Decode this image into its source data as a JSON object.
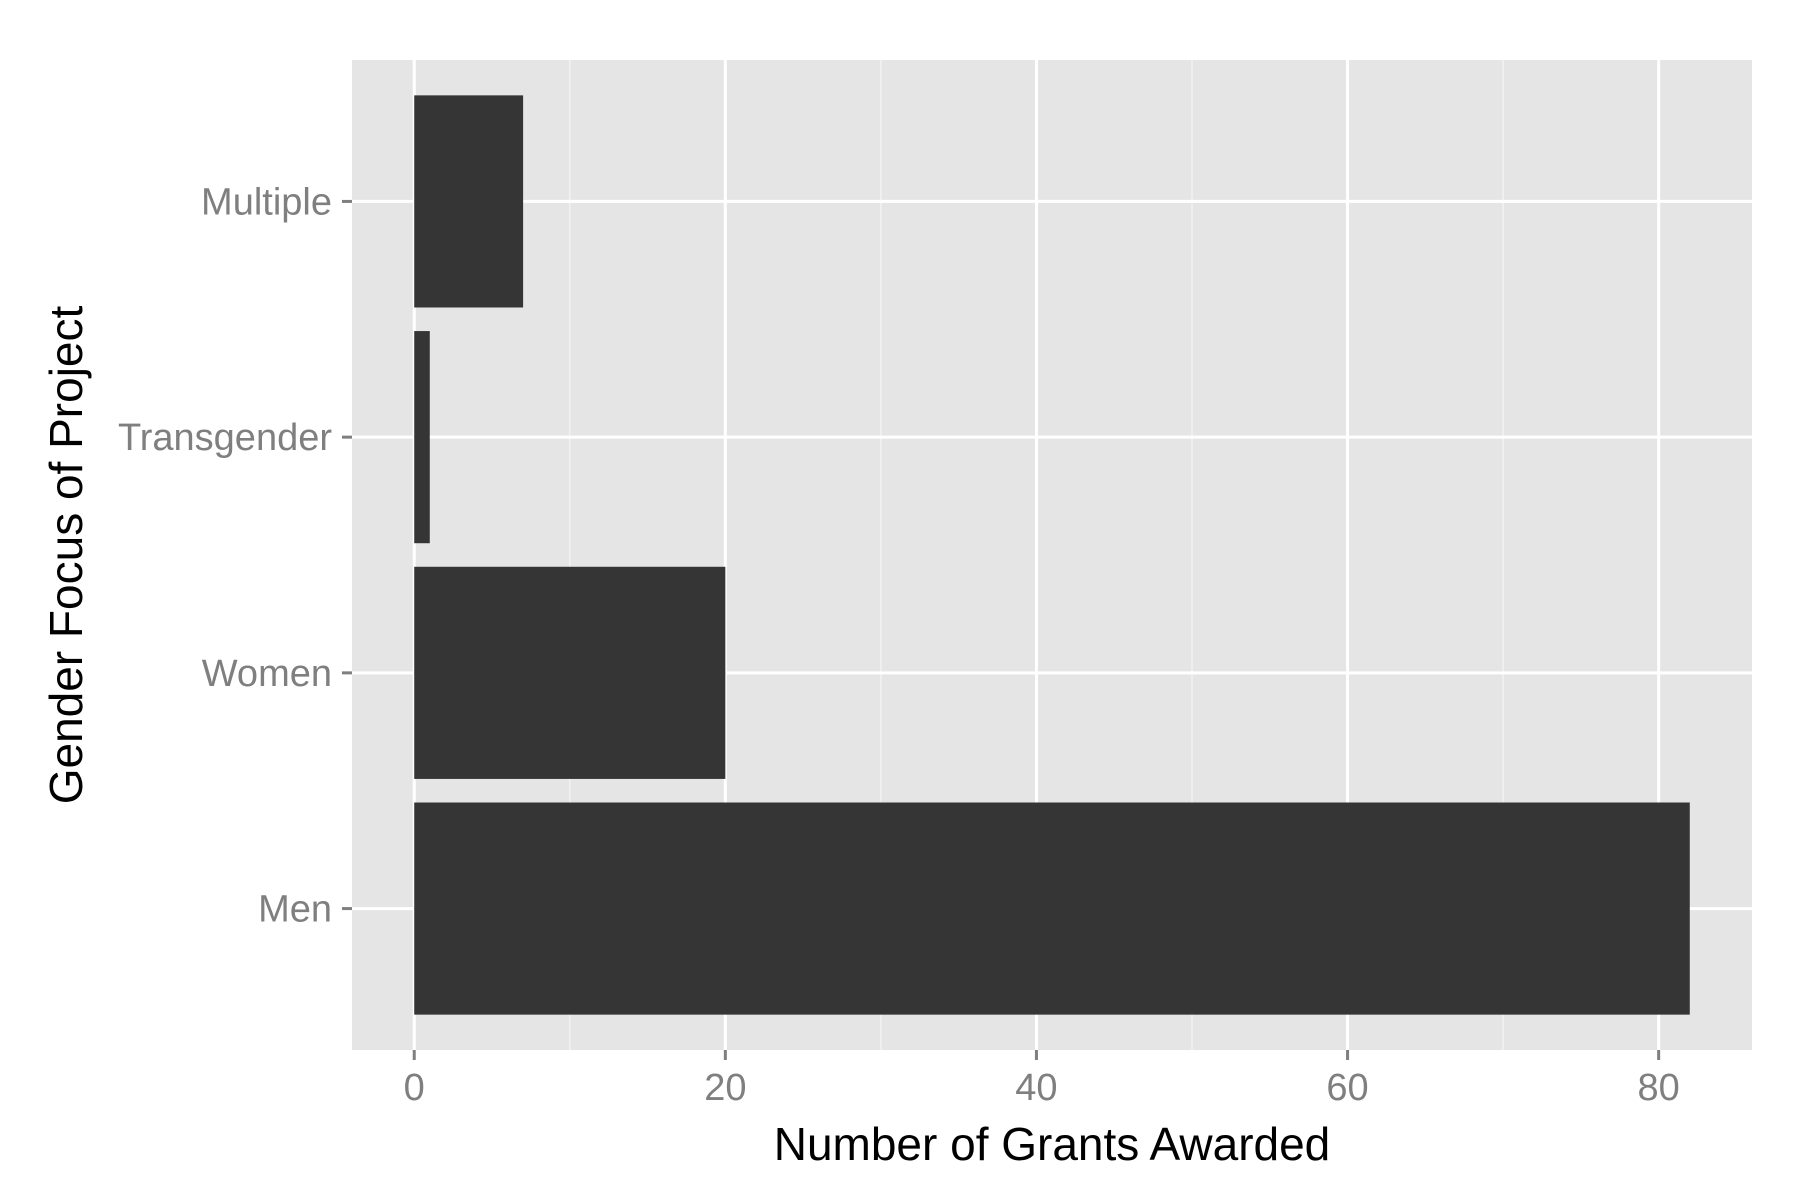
{
  "chart_data": {
    "type": "bar",
    "orientation": "horizontal",
    "title": "",
    "xlabel": "Number of Grants Awarded",
    "ylabel": "Gender Focus of Project",
    "categories": [
      "Men",
      "Women",
      "Transgender",
      "Multiple"
    ],
    "values": [
      82,
      20,
      1,
      7
    ],
    "xlim": [
      -4,
      86
    ],
    "x_ticks": [
      0,
      20,
      40,
      60,
      80
    ],
    "x_minor_ticks": [
      10,
      30,
      50,
      70
    ],
    "grid": true,
    "legend": "none",
    "colors": {
      "bar": "#353535",
      "panel": "#e5e5e5",
      "grid": "#ffffff",
      "tick_text": "#7f7f7f"
    }
  }
}
